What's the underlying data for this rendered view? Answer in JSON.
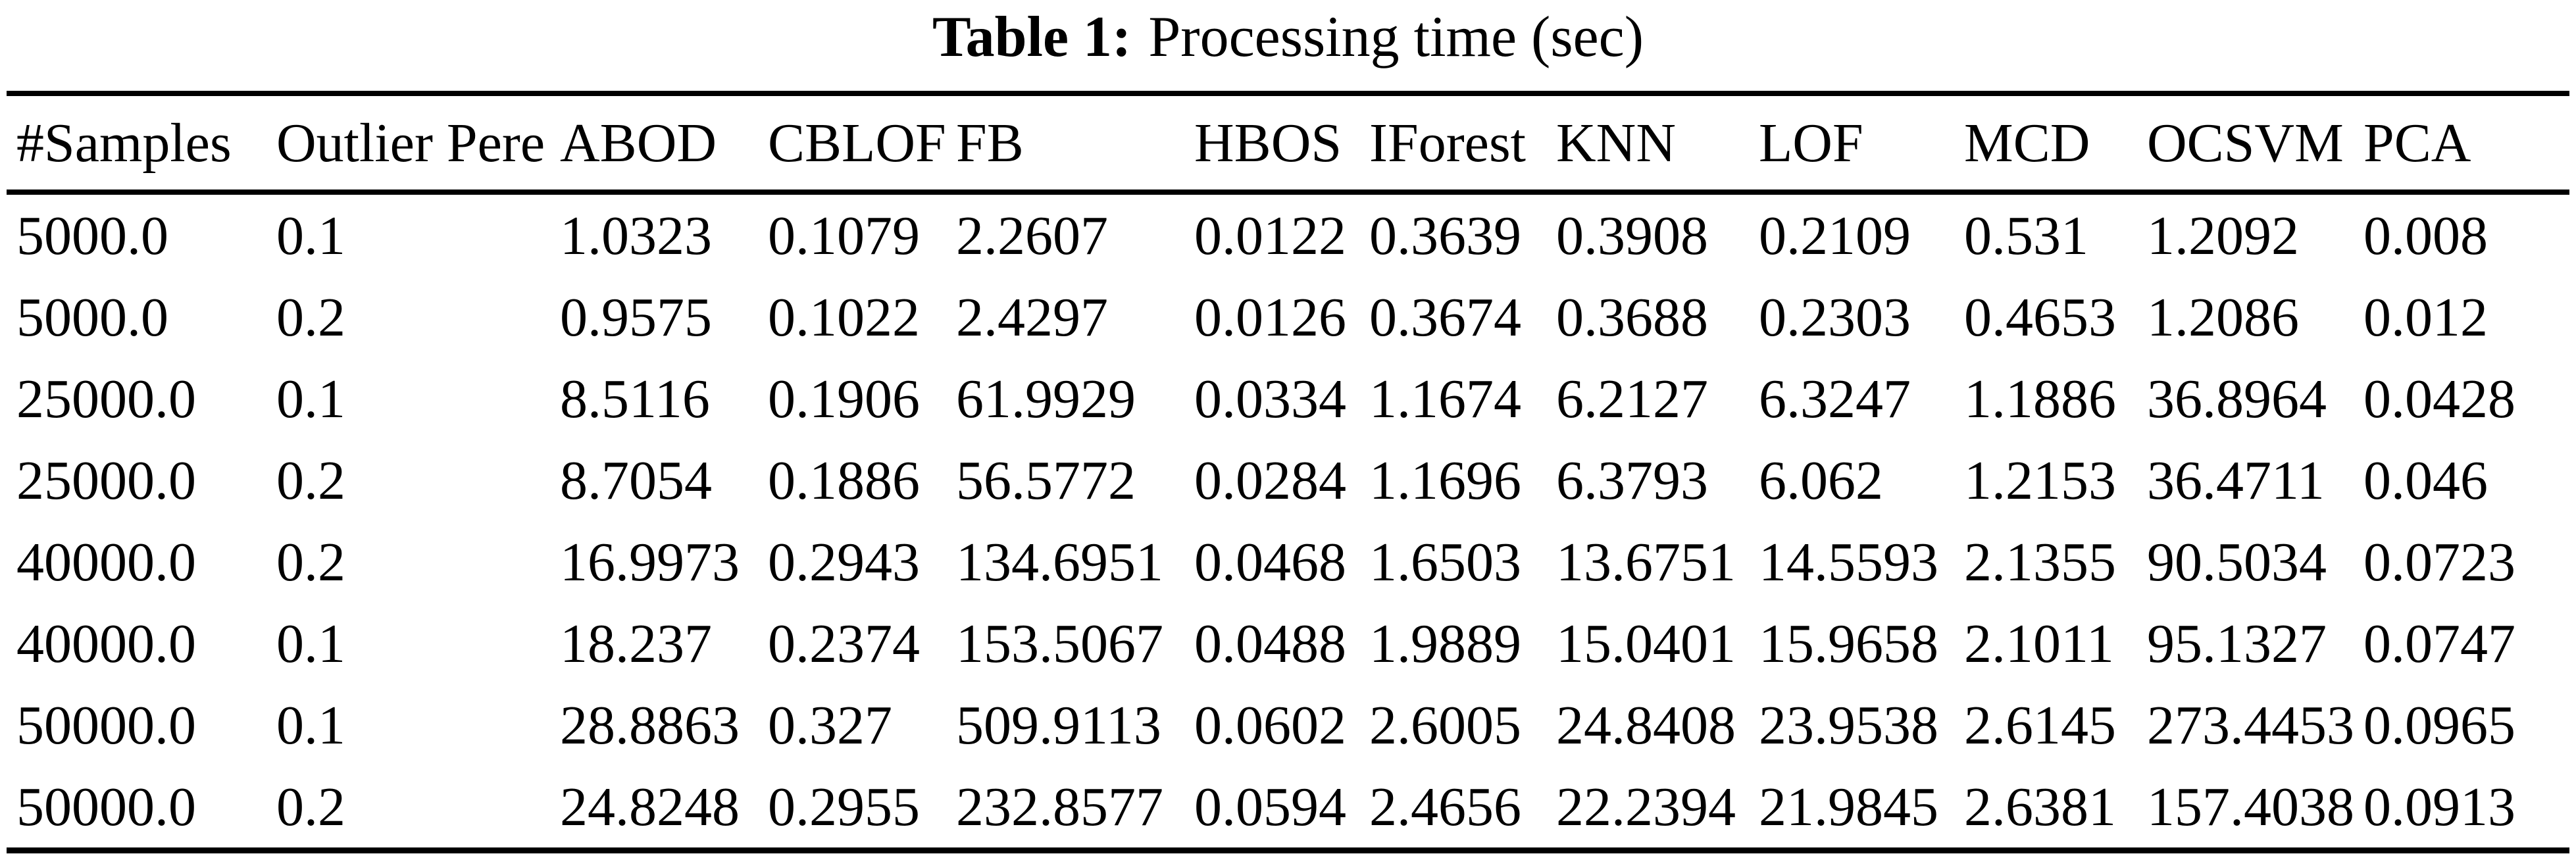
{
  "caption": {
    "label": "Table 1:",
    "text": "Processing time (sec)"
  },
  "table": {
    "columns": [
      "#Samples",
      "Outlier Pere",
      "ABOD",
      "CBLOF",
      "FB",
      "HBOS",
      "IForest",
      "KNN",
      "LOF",
      "MCD",
      "OCSVM",
      "PCA"
    ],
    "rows": [
      [
        "5000.0",
        "0.1",
        "1.0323",
        "0.1079",
        "2.2607",
        "0.0122",
        "0.3639",
        "0.3908",
        "0.2109",
        "0.531",
        "1.2092",
        "0.008"
      ],
      [
        "5000.0",
        "0.2",
        "0.9575",
        "0.1022",
        "2.4297",
        "0.0126",
        "0.3674",
        "0.3688",
        "0.2303",
        "0.4653",
        "1.2086",
        "0.012"
      ],
      [
        "25000.0",
        "0.1",
        "8.5116",
        "0.1906",
        "61.9929",
        "0.0334",
        "1.1674",
        "6.2127",
        "6.3247",
        "1.1886",
        "36.8964",
        "0.0428"
      ],
      [
        "25000.0",
        "0.2",
        "8.7054",
        "0.1886",
        "56.5772",
        "0.0284",
        "1.1696",
        "6.3793",
        "6.062",
        "1.2153",
        "36.4711",
        "0.046"
      ],
      [
        "40000.0",
        "0.2",
        "16.9973",
        "0.2943",
        "134.6951",
        "0.0468",
        "1.6503",
        "13.6751",
        "14.5593",
        "2.1355",
        "90.5034",
        "0.0723"
      ],
      [
        "40000.0",
        "0.1",
        "18.237",
        "0.2374",
        "153.5067",
        "0.0488",
        "1.9889",
        "15.0401",
        "15.9658",
        "2.1011",
        "95.1327",
        "0.0747"
      ],
      [
        "50000.0",
        "0.1",
        "28.8863",
        "0.327",
        "509.9113",
        "0.0602",
        "2.6005",
        "24.8408",
        "23.9538",
        "2.6145",
        "273.4453",
        "0.0965"
      ],
      [
        "50000.0",
        "0.2",
        "24.8248",
        "0.2955",
        "232.8577",
        "0.0594",
        "2.4656",
        "22.2394",
        "21.9845",
        "2.6381",
        "157.4038",
        "0.0913"
      ]
    ],
    "text_color": "#000000",
    "background_color": "#ffffff",
    "rule_color": "#000000"
  }
}
